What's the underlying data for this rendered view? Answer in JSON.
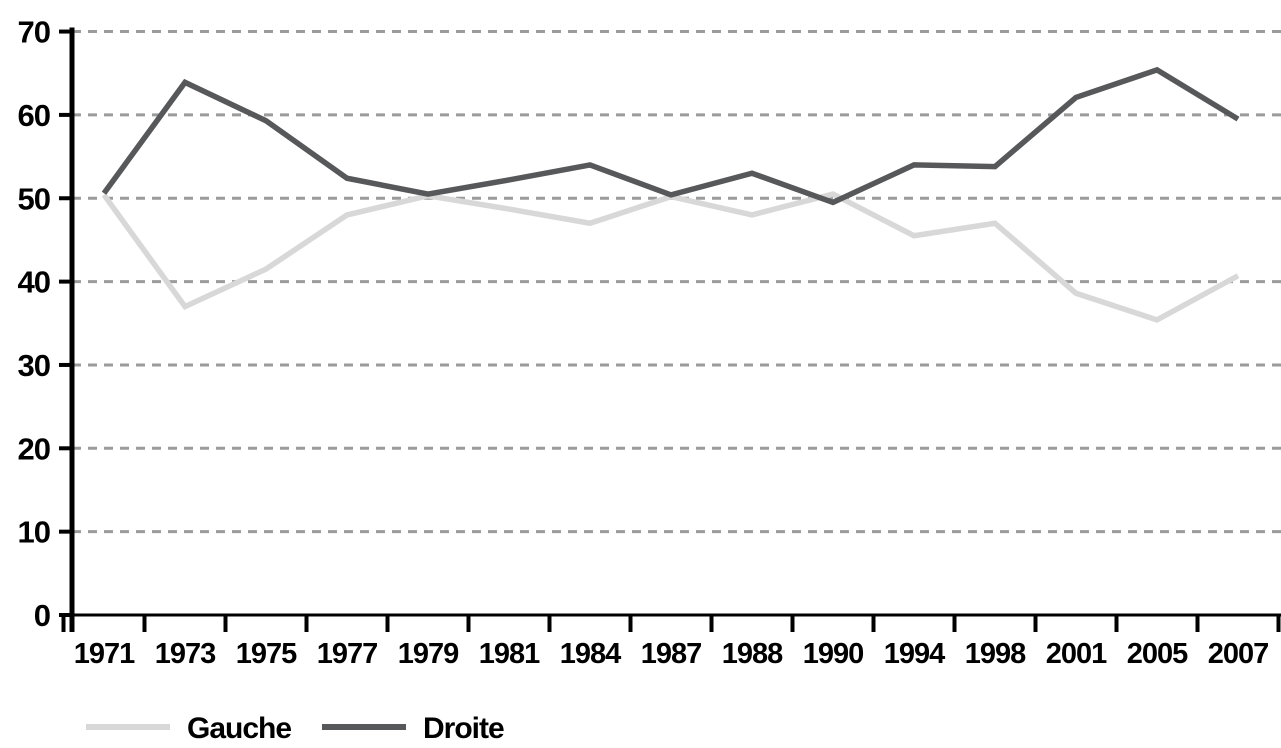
{
  "chart_data": {
    "type": "line",
    "categories": [
      "1971",
      "1973",
      "1975",
      "1977",
      "1979",
      "1981",
      "1984",
      "1987",
      "1988",
      "1990",
      "1994",
      "1998",
      "2001",
      "2005",
      "2007"
    ],
    "series": [
      {
        "name": "Gauche",
        "color": "#d8d8d9",
        "values": [
          50.4,
          37.0,
          41.5,
          48.0,
          50.3,
          48.7,
          47.0,
          50.2,
          48.0,
          50.5,
          45.5,
          47.0,
          38.6,
          35.4,
          40.7
        ]
      },
      {
        "name": "Droite",
        "color": "#57585a",
        "values": [
          50.6,
          63.9,
          59.3,
          52.4,
          50.5,
          52.2,
          54.0,
          50.4,
          53.0,
          49.5,
          54.0,
          53.8,
          62.1,
          65.4,
          59.5
        ]
      }
    ],
    "title": "",
    "xlabel": "",
    "ylabel": "",
    "ylim": [
      0,
      70
    ],
    "y_ticks": [
      0,
      10,
      20,
      30,
      40,
      50,
      60,
      70
    ],
    "grid": "horizontal-dashed",
    "legend_position": "bottom-left"
  },
  "colors": {
    "axis": "#000000",
    "gridline": "#9b9b9b",
    "tick_text": "#000000",
    "background": "#ffffff"
  }
}
